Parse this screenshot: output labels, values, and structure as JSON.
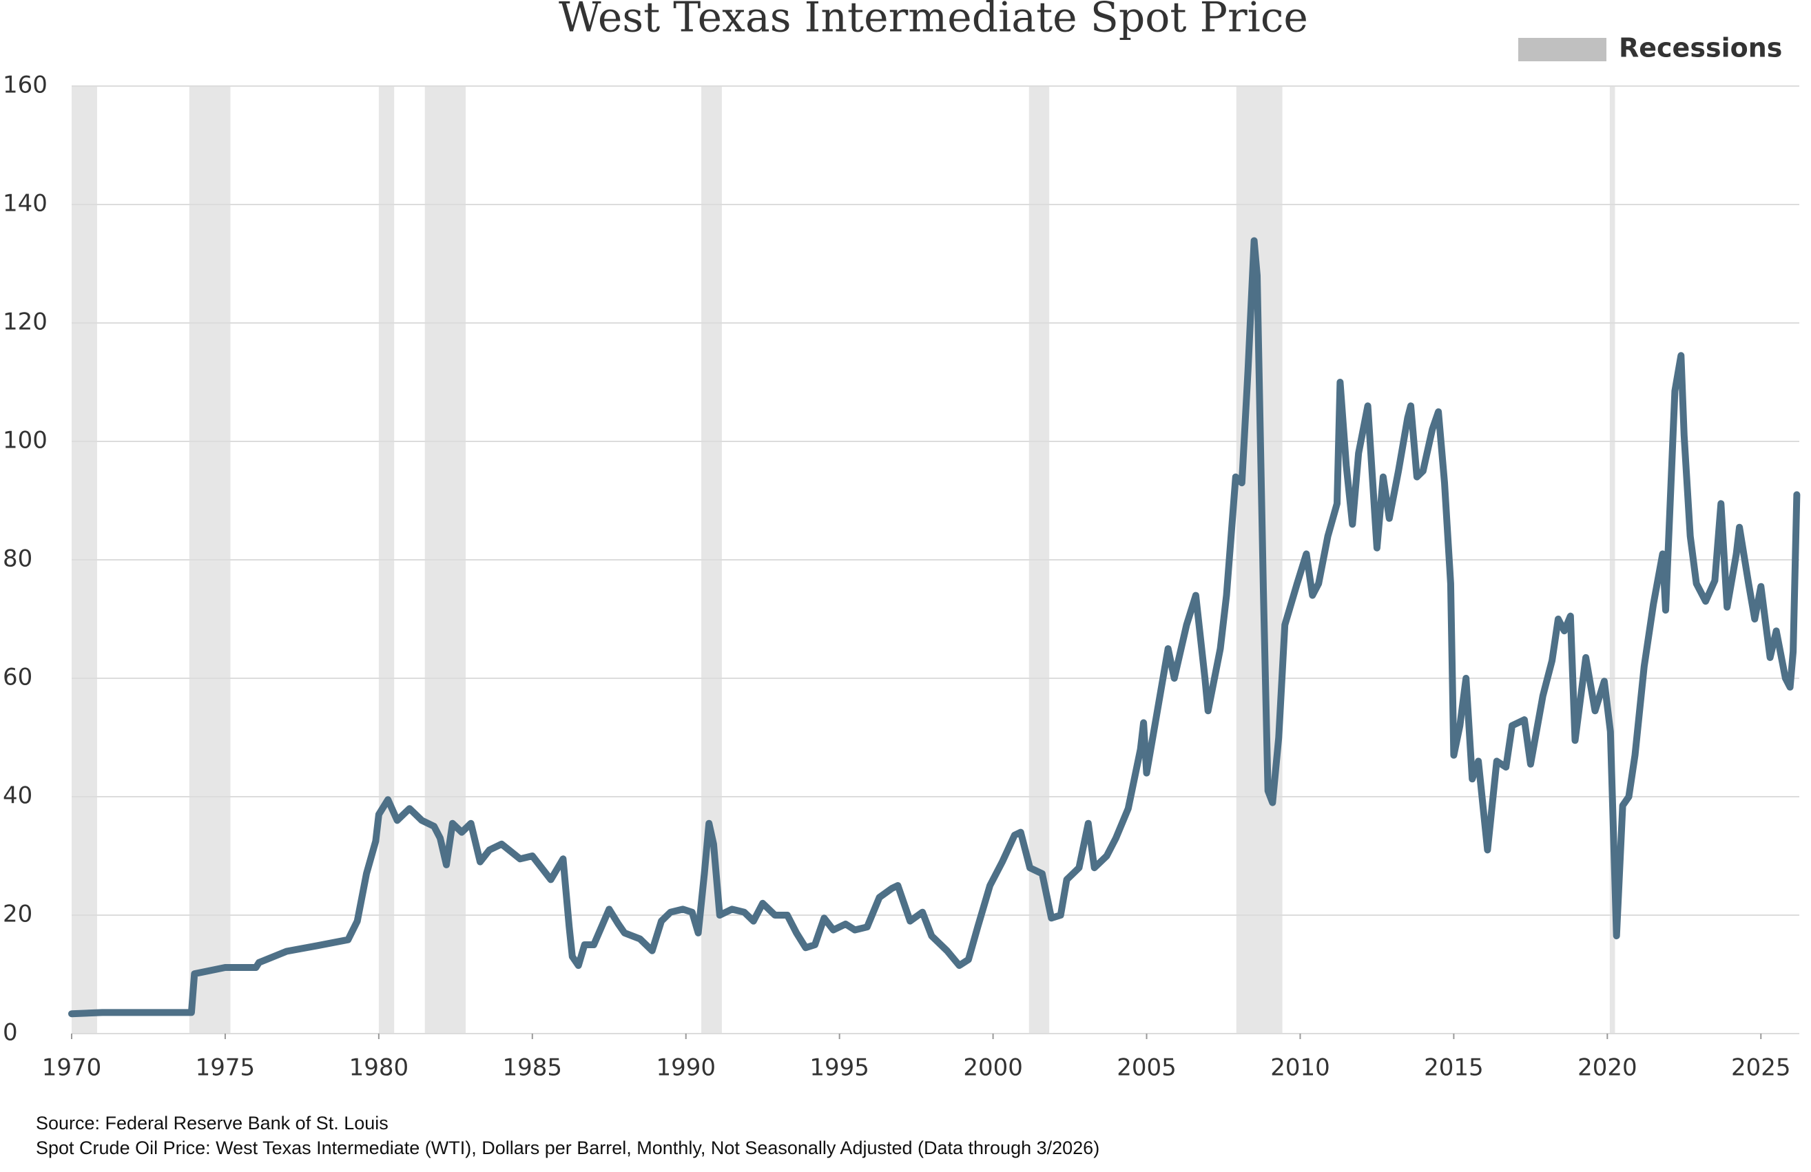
{
  "chart_data": {
    "type": "line",
    "title": "West Texas Intermediate Spot Price",
    "notes": [
      "Source: Federal Reserve Bank of St. Louis",
      "Spot Crude Oil Price: West Texas Intermediate (WTI), Dollars per Barrel, Monthly, Not Seasonally Adjusted (Data through 3/2026)"
    ],
    "color": "#4e7087",
    "grid": true,
    "xlim": [
      1970,
      2026.25
    ],
    "xticks": [
      1970,
      1975,
      1980,
      1985,
      1990,
      1995,
      2000,
      2005,
      2010,
      2015,
      2020,
      2025
    ],
    "ylim": [
      0,
      160
    ],
    "yticks": [
      0,
      20,
      40,
      60,
      80,
      100,
      120,
      140,
      160
    ],
    "shaded_ranges": {
      "label": "Recessions",
      "color": "#c0c0c0",
      "ranges": [
        [
          1969.92,
          1970.83
        ],
        [
          1973.83,
          1975.17
        ],
        [
          1980.0,
          1980.5
        ],
        [
          1981.5,
          1982.83
        ],
        [
          1990.5,
          1991.17
        ],
        [
          2001.17,
          2001.83
        ],
        [
          2007.92,
          2009.42
        ],
        [
          2020.08,
          2020.25
        ]
      ]
    },
    "x": [
      1970,
      1971,
      1973.9,
      1974.0,
      1975,
      1976,
      1976.1,
      1977,
      1978,
      1979,
      1979.3,
      1979.6,
      1979.9,
      1980.0,
      1980.3,
      1980.6,
      1981,
      1981.4,
      1981.8,
      1982.0,
      1982.2,
      1982.4,
      1982.7,
      1983,
      1983.3,
      1983.6,
      1984,
      1984.6,
      1985,
      1985.3,
      1985.6,
      1986,
      1986.2,
      1986.3,
      1986.5,
      1986.7,
      1987,
      1987.5,
      1987.8,
      1988,
      1988.5,
      1988.9,
      1989.2,
      1989.5,
      1989.9,
      1990.2,
      1990.4,
      1990.6,
      1990.75,
      1990.9,
      1991.1,
      1991.5,
      1991.9,
      1992.2,
      1992.5,
      1992.9,
      1993.3,
      1993.6,
      1993.9,
      1994.2,
      1994.5,
      1994.8,
      1995.2,
      1995.5,
      1995.9,
      1996.3,
      1996.7,
      1996.9,
      1997.3,
      1997.7,
      1998.0,
      1998.5,
      1998.9,
      1999.2,
      1999.5,
      1999.9,
      2000.3,
      2000.7,
      2000.9,
      2001.2,
      2001.6,
      2001.9,
      2002.2,
      2002.4,
      2002.8,
      2003.1,
      2003.3,
      2003.7,
      2004.0,
      2004.4,
      2004.8,
      2004.9,
      2005.0,
      2005.3,
      2005.7,
      2005.9,
      2006.3,
      2006.6,
      2006.9,
      2007.0,
      2007.4,
      2007.6,
      2007.9,
      2008.1,
      2008.3,
      2008.5,
      2008.6,
      2008.8,
      2008.95,
      2009.1,
      2009.3,
      2009.5,
      2009.9,
      2010.2,
      2010.4,
      2010.6,
      2010.9,
      2011.2,
      2011.3,
      2011.5,
      2011.7,
      2011.9,
      2012.2,
      2012.5,
      2012.7,
      2012.9,
      2013.2,
      2013.5,
      2013.6,
      2013.8,
      2014.0,
      2014.3,
      2014.5,
      2014.7,
      2014.9,
      2015.0,
      2015.2,
      2015.4,
      2015.6,
      2015.8,
      2016.1,
      2016.4,
      2016.7,
      2016.9,
      2017.3,
      2017.5,
      2017.9,
      2018.2,
      2018.4,
      2018.6,
      2018.8,
      2018.95,
      2019.3,
      2019.6,
      2019.9,
      2020.1,
      2020.3,
      2020.5,
      2020.7,
      2020.9,
      2021.2,
      2021.5,
      2021.8,
      2021.9,
      2022.2,
      2022.4,
      2022.5,
      2022.7,
      2022.9,
      2023.2,
      2023.5,
      2023.7,
      2023.9,
      2024.2,
      2024.3,
      2024.6,
      2024.8,
      2025.0,
      2025.3,
      2025.5,
      2025.8,
      2025.95,
      2026.05,
      2026.17
    ],
    "values": [
      3.35,
      3.56,
      3.56,
      10.11,
      11.16,
      11.16,
      12.0,
      13.9,
      14.85,
      15.85,
      19,
      27,
      32.5,
      37,
      39.5,
      36,
      38,
      36,
      35,
      33,
      28.5,
      35.5,
      34,
      35.5,
      29,
      31,
      32,
      29.5,
      30,
      28,
      26,
      29.5,
      18,
      13,
      11.5,
      15,
      15,
      21,
      18.5,
      17,
      16,
      14,
      19,
      20.5,
      21,
      20.5,
      17,
      27,
      35.5,
      32,
      20,
      21,
      20.5,
      19,
      22,
      20,
      20,
      17,
      14.5,
      15,
      19.5,
      17.5,
      18.5,
      17.5,
      18,
      23,
      24.5,
      25,
      19,
      20.5,
      16.5,
      14,
      11.5,
      12.5,
      18,
      25,
      29,
      33.5,
      34,
      28,
      27,
      19.5,
      20,
      26,
      28,
      35.5,
      28,
      30,
      33,
      38,
      48,
      52.5,
      44,
      53,
      65,
      60,
      69,
      74,
      60,
      54.5,
      65,
      74,
      94,
      93,
      112,
      133.9,
      128,
      75,
      41,
      39,
      50,
      69,
      76,
      81,
      74,
      76,
      84,
      89.5,
      110,
      96,
      86,
      98,
      106,
      82,
      94,
      87,
      95,
      104,
      106,
      94,
      95,
      102,
      105,
      93,
      76,
      47,
      52,
      60,
      43,
      46,
      31,
      46,
      45,
      52,
      53,
      45.5,
      57,
      63,
      70,
      68,
      70.5,
      49.5,
      63.5,
      54.5,
      59.5,
      51,
      16.5,
      38.5,
      40,
      47,
      62,
      72.5,
      81,
      71.5,
      108.5,
      114.5,
      101,
      84,
      76,
      73,
      76.5,
      89.5,
      72,
      81,
      85.5,
      76,
      70,
      75.5,
      63.5,
      68,
      60,
      58.5,
      64.5,
      91
    ]
  }
}
